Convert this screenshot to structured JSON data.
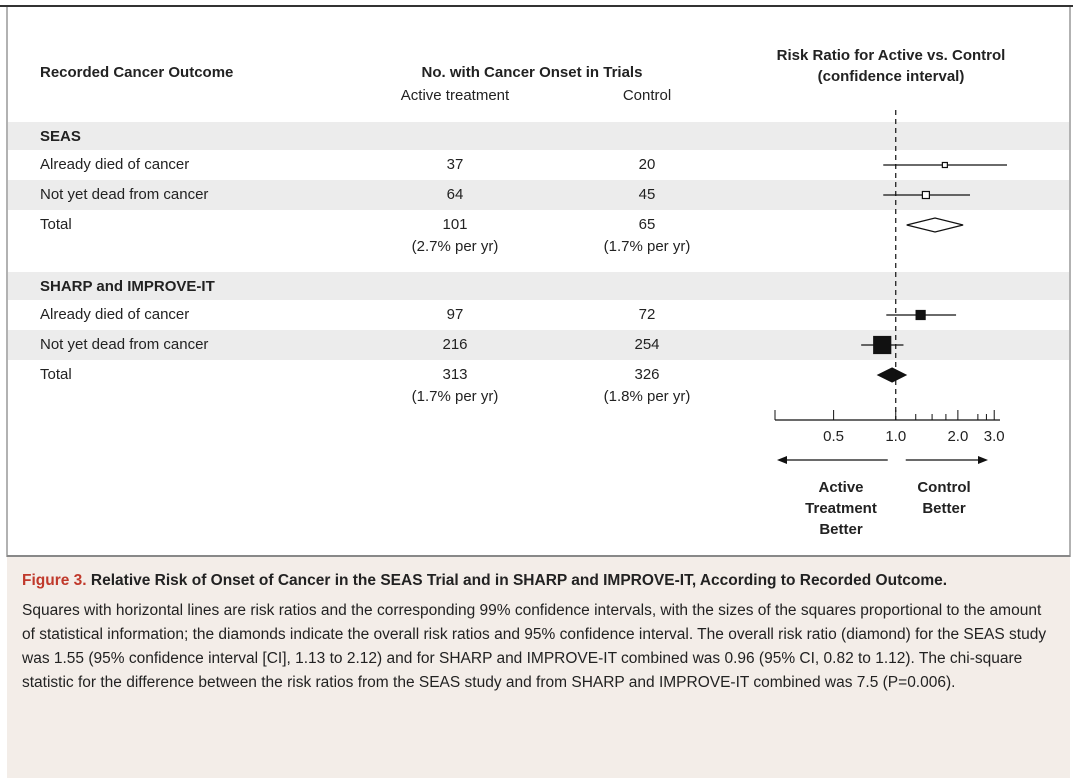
{
  "chart_data": {
    "type": "forest",
    "columns": {
      "outcome": "Recorded Cancer Outcome",
      "onset": "No. with Cancer Onset in Trials",
      "active": "Active treatment",
      "control": "Control",
      "ratio": [
        "Risk Ratio for Active vs. Control",
        "(confidence interval)"
      ]
    },
    "groups": [
      {
        "name": "SEAS",
        "filled": false,
        "rows": [
          {
            "label": "Already died of cancer",
            "active": 37,
            "control": 20,
            "ratio": 1.73,
            "ci": [
              0.87,
              3.46
            ],
            "weight": 5
          },
          {
            "label": "Not yet dead from cancer",
            "active": 64,
            "control": 45,
            "ratio": 1.4,
            "ci": [
              0.87,
              2.29
            ],
            "weight": 7
          }
        ],
        "total": {
          "label": "Total",
          "active": 101,
          "control": 65,
          "active_rate": "(2.7% per yr)",
          "control_rate": "(1.7% per yr)",
          "ratio": 1.55,
          "ci": [
            1.13,
            2.12
          ]
        }
      },
      {
        "name": "SHARP and IMPROVE-IT",
        "filled": true,
        "rows": [
          {
            "label": "Already died of cancer",
            "active": 97,
            "control": 72,
            "ratio": 1.32,
            "ci": [
              0.9,
              1.96
            ],
            "weight": 9
          },
          {
            "label": "Not yet dead from cancer",
            "active": 216,
            "control": 254,
            "ratio": 0.86,
            "ci": [
              0.68,
              1.09
            ],
            "weight": 17
          }
        ],
        "total": {
          "label": "Total",
          "active": 313,
          "control": 326,
          "active_rate": "(1.7% per yr)",
          "control_rate": "(1.8% per yr)",
          "ratio": 0.96,
          "ci": [
            0.82,
            1.12
          ]
        }
      }
    ],
    "xscale": "log",
    "xlim": [
      0.26,
      3.2
    ],
    "xticks": [
      0.5,
      {
        "value": 1,
        "label": "1.0"
      },
      {
        "value": 2,
        "label": "2.0"
      },
      {
        "value": 3,
        "label": "3.0"
      }
    ],
    "minor_xticks": [
      1.25,
      1.5,
      1.75,
      2.5,
      2.75
    ],
    "reference_line": 1,
    "arrows": {
      "left": [
        "Active",
        "Treatment",
        "Better"
      ],
      "right": [
        "Control",
        "Better"
      ]
    }
  },
  "caption": {
    "label": "Figure 3.",
    "title": "Relative Risk of Onset of Cancer in the SEAS Trial and in SHARP and IMPROVE-IT, According to Recorded Outcome.",
    "text": "Squares with horizontal lines are risk ratios and the corresponding 99% confidence intervals, with the sizes of the squares proportional to the amount of statistical information; the diamonds indicate the overall risk ratios and 95% confidence interval. The overall risk ratio (diamond) for the SEAS study was 1.55 (95% confidence interval [CI], 1.13 to 2.12) and for SHARP and IMPROVE-IT combined was 0.96 (95% CI, 0.82 to 1.12). The chi-square statistic for the difference between the risk ratios from the SEAS study and from SHARP and IMPROVE-IT combined was 7.5 (P=0.006)."
  }
}
